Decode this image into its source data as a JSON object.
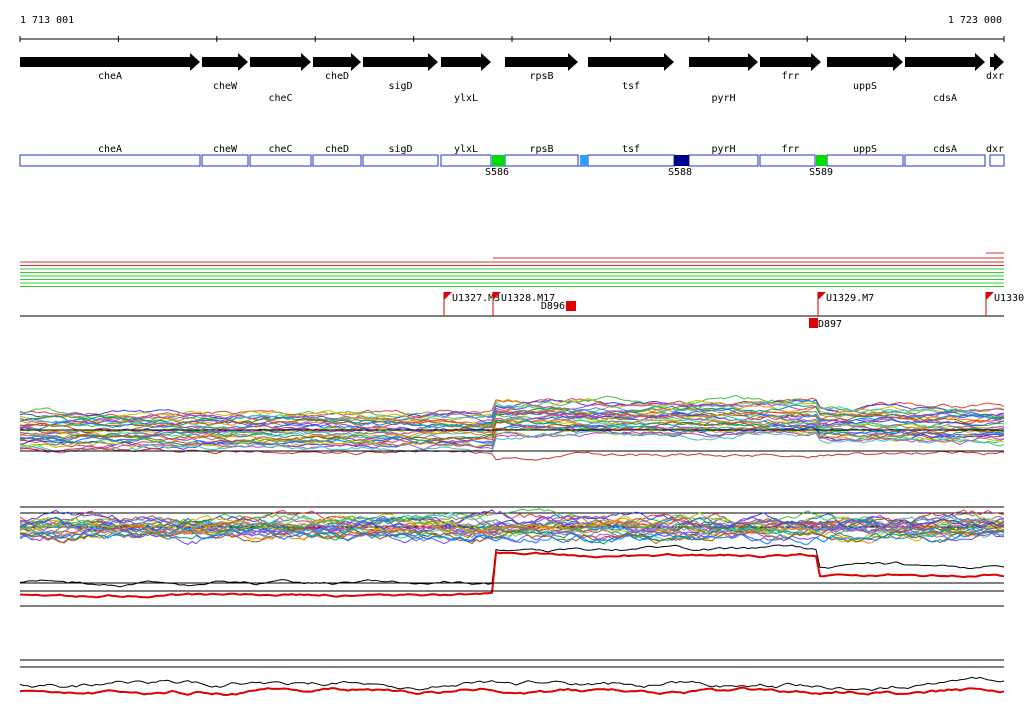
{
  "coordinates": {
    "start": "1 713 001",
    "end": "1 723 000"
  },
  "genes": [
    "cheA",
    "cheW",
    "cheC",
    "cheD",
    "sigD",
    "ylxL",
    "rpsB",
    "tsf",
    "pyrH",
    "frr",
    "uppS",
    "cdsA",
    "dxr"
  ],
  "sites": [
    "S586",
    "S588",
    "S589"
  ],
  "markers": [
    "U1327.M3",
    "U1328.M17",
    "U1329.M7",
    "U1330"
  ],
  "deletions": [
    "D896",
    "D897"
  ]
}
